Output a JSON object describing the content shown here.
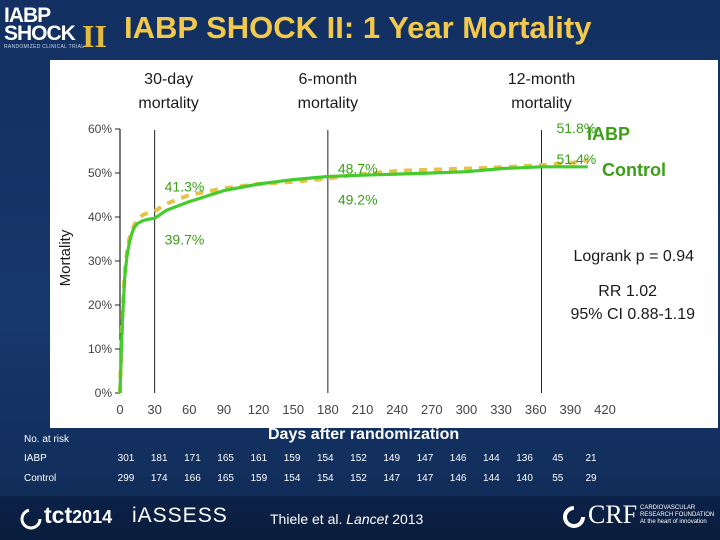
{
  "header": {
    "logo_line1": "IABP",
    "logo_line2": "SHOCK",
    "logo_numeral": "II",
    "logo_tagline": "RANDOMIZED CLINICAL TRIAL",
    "title": "IABP SHOCK II: 1 Year Mortality"
  },
  "colors": {
    "background": "#15335f",
    "title": "#f2c94c",
    "iabp_line": "#e6c24a",
    "control_line": "#44cc2d",
    "annotation_text": "#3aa016"
  },
  "chart_data": {
    "type": "line",
    "title": "",
    "xlabel": "Days after randomization",
    "ylabel": "Mortality",
    "xlim": [
      0,
      420
    ],
    "ylim": [
      0,
      60
    ],
    "x_ticks": [
      "0",
      "30",
      "60",
      "90",
      "120",
      "150",
      "180",
      "210",
      "240",
      "270",
      "300",
      "330",
      "360",
      "390",
      "420"
    ],
    "y_ticks": [
      "0%",
      "10%",
      "20%",
      "30%",
      "40%",
      "50%",
      "60%"
    ],
    "vertical_markers": [
      {
        "x": 30,
        "label_line1": "30-day",
        "label_line2": "mortality"
      },
      {
        "x": 180,
        "label_line1": "6-month",
        "label_line2": "mortality"
      },
      {
        "x": 365,
        "label_line1": "12-month",
        "label_line2": "mortality"
      }
    ],
    "series": [
      {
        "name": "IABP",
        "style": "dashed",
        "color": "#e6c24a",
        "x": [
          0,
          1,
          2,
          3,
          4,
          6,
          8,
          10,
          12,
          15,
          20,
          25,
          30,
          40,
          50,
          60,
          90,
          120,
          150,
          180,
          200,
          240,
          300,
          330,
          365,
          400,
          405
        ],
        "y": [
          0,
          10,
          17,
          22,
          27,
          32,
          35,
          36.5,
          38,
          39.5,
          40.5,
          41,
          41.3,
          43,
          44,
          45,
          46.5,
          47.5,
          48,
          48.7,
          49.5,
          50.5,
          51,
          51.3,
          51.8,
          52.5,
          53
        ]
      },
      {
        "name": "Control",
        "style": "solid",
        "color": "#44cc2d",
        "x": [
          0,
          1,
          2,
          3,
          4,
          6,
          8,
          10,
          12,
          15,
          20,
          25,
          30,
          40,
          50,
          60,
          90,
          120,
          150,
          180,
          210,
          270,
          300,
          330,
          365,
          400,
          405
        ],
        "y": [
          0,
          9,
          16,
          21,
          26,
          31,
          34,
          36,
          37.5,
          38.5,
          39.2,
          39.5,
          39.7,
          41.5,
          42.5,
          43.5,
          46,
          47.5,
          48.5,
          49.2,
          49.5,
          50,
          50.3,
          51,
          51.4,
          51.4,
          51.4
        ]
      }
    ],
    "annotations": [
      {
        "text": "41.3%",
        "at_x": 30,
        "at_y": 41.3
      },
      {
        "text": "39.7%",
        "at_x": 30,
        "at_y": 39.7
      },
      {
        "text": "48.7%",
        "at_x": 180,
        "at_y": 48.7
      },
      {
        "text": "49.2%",
        "at_x": 180,
        "at_y": 49.2
      },
      {
        "text": "51.8%",
        "at_x": 365,
        "at_y": 51.8
      },
      {
        "text": "51.4%",
        "at_x": 365,
        "at_y": 51.4
      }
    ],
    "legend": {
      "iabp": "IABP",
      "control": "Control"
    },
    "stats": {
      "logrank": "Logrank p = 0.94",
      "rr": "RR 1.02",
      "ci": "95% CI 0.88-1.19"
    }
  },
  "risk_table": {
    "title": "No. at risk",
    "days": [
      0,
      30,
      60,
      90,
      120,
      150,
      180,
      210,
      240,
      270,
      300,
      330,
      360,
      390,
      420
    ],
    "rows": [
      {
        "label": "IABP",
        "values": [
          "301",
          "181",
          "171",
          "165",
          "161",
          "159",
          "154",
          "152",
          "149",
          "147",
          "146",
          "144",
          "136",
          "45",
          "21"
        ]
      },
      {
        "label": "Control",
        "values": [
          "299",
          "174",
          "166",
          "165",
          "159",
          "154",
          "154",
          "152",
          "147",
          "147",
          "146",
          "144",
          "140",
          "55",
          "29"
        ]
      }
    ]
  },
  "footer": {
    "tct": "tct",
    "tct_year": "2014",
    "iassess": "iASSESS",
    "citation_prefix": "Thiele et al. ",
    "citation_journal": "Lancet",
    "citation_year": " 2013",
    "crf": "CRF",
    "crf_sub": "CARDIOVASCULAR RESEARCH FOUNDATION",
    "crf_sub2": "At the heart of innovation"
  }
}
